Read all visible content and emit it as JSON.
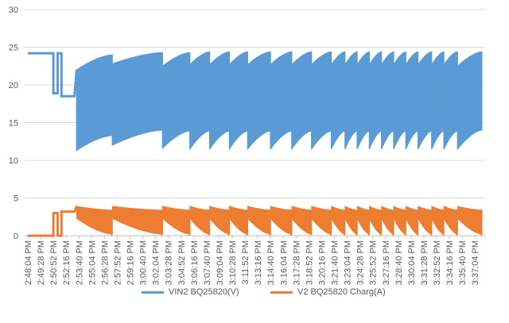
{
  "chart_data": {
    "type": "line",
    "title": "",
    "xlabel": "",
    "ylabel": "",
    "ylim": [
      0,
      30
    ],
    "yticks": [
      0,
      5,
      10,
      15,
      20,
      25,
      30
    ],
    "grid": true,
    "legend_position": "bottom",
    "x_ticks": [
      "2:48:04 PM",
      "2:49:28 PM",
      "2:50:52 PM",
      "2:52:16 PM",
      "2:53:40 PM",
      "2:55:04 PM",
      "2:56:28 PM",
      "2:57:52 PM",
      "2:59:16 PM",
      "3:00:40 PM",
      "3:02:04 PM",
      "3:03:28 PM",
      "3:04:52 PM",
      "3:06:16 PM",
      "3:07:40 PM",
      "3:09:04 PM",
      "3:10:28 PM",
      "3:11:52 PM",
      "3:13:16 PM",
      "3:14:40 PM",
      "3:16:04 PM",
      "3:17:28 PM",
      "3:18:52 PM",
      "3:20:16 PM",
      "3:21:40 PM",
      "3:23:04 PM",
      "3:24:28 PM",
      "3:25:52 PM",
      "3:27:16 PM",
      "3:28:40 PM",
      "3:30:04 PM",
      "3:31:28 PM",
      "3:32:52 PM",
      "3:34:16 PM",
      "3:35:40 PM",
      "3:37:04 PM"
    ],
    "series": [
      {
        "name": "VIN2 BQ25820(V)",
        "color": "#5b9bd5",
        "initial_segments": [
          {
            "from": "2:48:04 PM",
            "to": "2:50:52 PM",
            "value": 24.2
          },
          {
            "from": "2:50:52 PM",
            "to": "2:51:20 PM",
            "value": 18.9
          },
          {
            "from": "2:51:20 PM",
            "to": "2:51:45 PM",
            "value": 24.2
          },
          {
            "from": "2:51:45 PM",
            "to": "2:53:10 PM",
            "value": 18.5
          }
        ],
        "oscillation_band": {
          "from": "2:53:25 PM",
          "to": "3:37:50 PM",
          "min": [
            11.3,
            14.0
          ],
          "max": [
            22.0,
            24.5
          ]
        },
        "sawtooth_cycles": [
          {
            "start": "2:53:25 PM",
            "end": "2:57:20 PM",
            "min_start": 11.3,
            "min_end": 13.3,
            "max_start": 22.0,
            "max_end": 24.0
          },
          {
            "start": "2:57:20 PM",
            "end": "3:02:50 PM",
            "min_start": 12.0,
            "min_end": 14.0,
            "max_start": 22.8,
            "max_end": 24.3
          },
          {
            "start": "3:02:50 PM",
            "end": "3:05:50 PM",
            "min_start": 11.6,
            "min_end": 13.9,
            "max_start": 22.5,
            "max_end": 24.3
          },
          {
            "start": "3:05:50 PM",
            "end": "3:08:00 PM",
            "min_start": 11.5,
            "min_end": 13.9,
            "max_start": 22.7,
            "max_end": 24.4
          },
          {
            "start": "3:08:00 PM",
            "end": "3:10:10 PM",
            "min_start": 11.5,
            "min_end": 13.9,
            "max_start": 22.7,
            "max_end": 24.4
          },
          {
            "start": "3:10:10 PM",
            "end": "3:12:10 PM",
            "min_start": 11.5,
            "min_end": 13.9,
            "max_start": 22.7,
            "max_end": 24.4
          },
          {
            "start": "3:12:10 PM",
            "end": "3:14:40 PM",
            "min_start": 11.5,
            "min_end": 13.9,
            "max_start": 22.7,
            "max_end": 24.4
          },
          {
            "start": "3:14:40 PM",
            "end": "3:17:00 PM",
            "min_start": 11.5,
            "min_end": 13.9,
            "max_start": 22.7,
            "max_end": 24.4
          },
          {
            "start": "3:17:00 PM",
            "end": "3:19:10 PM",
            "min_start": 11.5,
            "min_end": 13.9,
            "max_start": 22.7,
            "max_end": 24.4
          },
          {
            "start": "3:19:10 PM",
            "end": "3:21:20 PM",
            "min_start": 11.5,
            "min_end": 13.9,
            "max_start": 22.7,
            "max_end": 24.4
          },
          {
            "start": "3:21:20 PM",
            "end": "3:22:50 PM",
            "min_start": 11.5,
            "min_end": 13.9,
            "max_start": 22.7,
            "max_end": 24.4
          },
          {
            "start": "3:22:50 PM",
            "end": "3:24:10 PM",
            "min_start": 11.5,
            "min_end": 13.9,
            "max_start": 22.7,
            "max_end": 24.4
          },
          {
            "start": "3:24:10 PM",
            "end": "3:25:30 PM",
            "min_start": 11.5,
            "min_end": 13.9,
            "max_start": 22.7,
            "max_end": 24.4
          },
          {
            "start": "3:25:30 PM",
            "end": "3:26:50 PM",
            "min_start": 11.5,
            "min_end": 13.9,
            "max_start": 22.7,
            "max_end": 24.4
          },
          {
            "start": "3:26:50 PM",
            "end": "3:28:10 PM",
            "min_start": 11.5,
            "min_end": 13.9,
            "max_start": 22.7,
            "max_end": 24.4
          },
          {
            "start": "3:28:10 PM",
            "end": "3:29:30 PM",
            "min_start": 11.5,
            "min_end": 13.9,
            "max_start": 22.7,
            "max_end": 24.4
          },
          {
            "start": "3:29:30 PM",
            "end": "3:30:50 PM",
            "min_start": 11.5,
            "min_end": 13.9,
            "max_start": 22.7,
            "max_end": 24.4
          },
          {
            "start": "3:30:50 PM",
            "end": "3:32:20 PM",
            "min_start": 11.5,
            "min_end": 13.9,
            "max_start": 22.7,
            "max_end": 24.4
          },
          {
            "start": "3:32:20 PM",
            "end": "3:33:40 PM",
            "min_start": 11.5,
            "min_end": 13.9,
            "max_start": 22.7,
            "max_end": 24.4
          },
          {
            "start": "3:33:40 PM",
            "end": "3:35:10 PM",
            "min_start": 11.5,
            "min_end": 13.9,
            "max_start": 22.7,
            "max_end": 24.4
          },
          {
            "start": "3:35:10 PM",
            "end": "3:37:50 PM",
            "min_start": 11.5,
            "min_end": 14.0,
            "max_start": 22.5,
            "max_end": 24.4
          }
        ]
      },
      {
        "name": "V2 BQ25820 Charg(A)",
        "color": "#ed7d31",
        "initial_segments": [
          {
            "from": "2:48:04 PM",
            "to": "2:50:52 PM",
            "value": 0.0
          },
          {
            "from": "2:50:52 PM",
            "to": "2:51:20 PM",
            "value": 3.0
          },
          {
            "from": "2:51:20 PM",
            "to": "2:51:45 PM",
            "value": 0.0
          },
          {
            "from": "2:51:45 PM",
            "to": "2:53:10 PM",
            "value": 3.2
          }
        ],
        "oscillation_band": {
          "from": "2:53:25 PM",
          "to": "3:37:50 PM",
          "min": [
            0.0,
            1.5
          ],
          "max": [
            3.0,
            3.9
          ]
        }
      }
    ]
  }
}
